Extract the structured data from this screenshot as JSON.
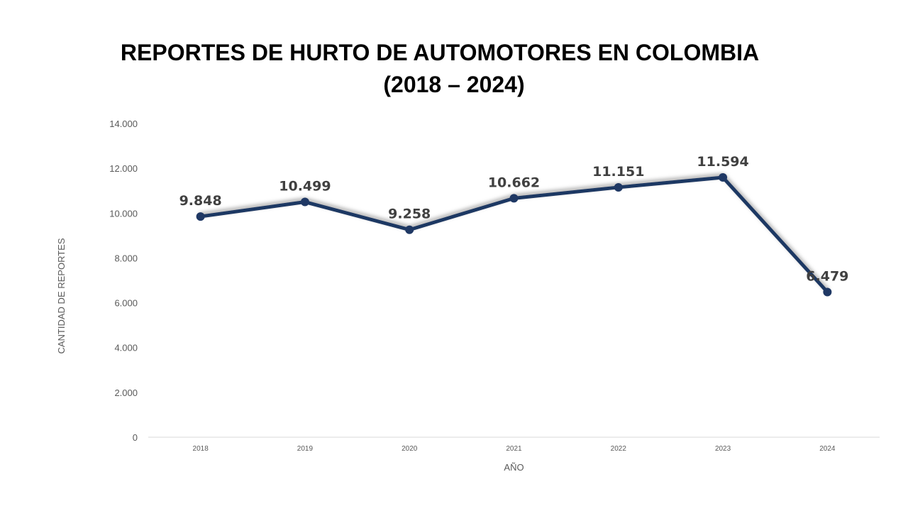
{
  "title": {
    "line1": "REPORTES DE HURTO DE AUTOMOTORES EN COLOMBIA",
    "line2": "(2018 – 2024)"
  },
  "chart_data": {
    "type": "line",
    "x": [
      "2018",
      "2019",
      "2020",
      "2021",
      "2022",
      "2023",
      "2024"
    ],
    "series": [
      {
        "values": [
          9848,
          10499,
          9258,
          10662,
          11151,
          11594,
          6479
        ],
        "data_labels": [
          "9.848",
          "10.499",
          "9.258",
          "10.662",
          "11.151",
          "11.594",
          "6.479"
        ]
      }
    ],
    "xlabel": "AÑO",
    "ylabel": "CANTIDAD DE REPORTES",
    "ylim": [
      0,
      14000
    ],
    "yticks": [
      0,
      2000,
      4000,
      6000,
      8000,
      10000,
      12000,
      14000
    ],
    "ytick_labels": [
      "0",
      "2.000",
      "4.000",
      "6.000",
      "8.000",
      "10.000",
      "12.000",
      "14.000"
    ],
    "grid": false,
    "legend": "none",
    "colors": {
      "line": "#1F3864",
      "shadow": "#bfbfbf",
      "axis": "#d9d9d9",
      "text": "#595959",
      "labels": "#404040"
    }
  }
}
